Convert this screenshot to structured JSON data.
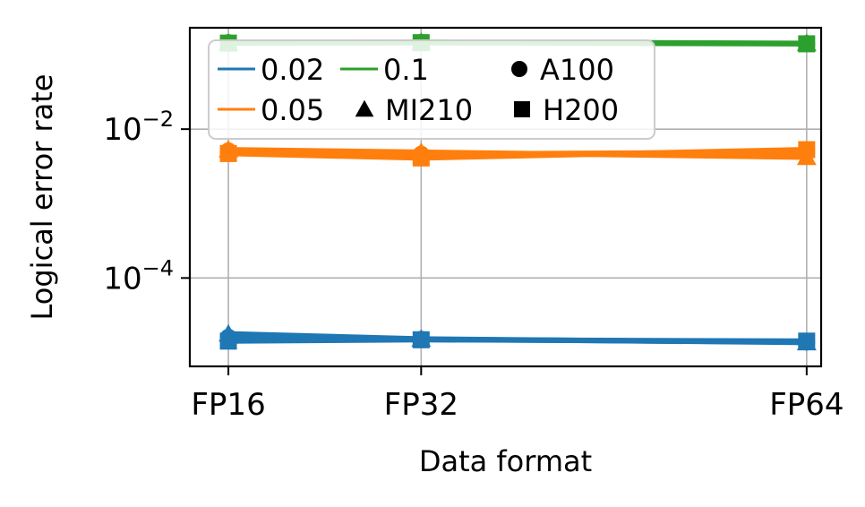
{
  "chart_data": {
    "type": "line",
    "title": "",
    "xlabel": "Data format",
    "ylabel": "Logical error rate",
    "categories": [
      "FP16",
      "FP32",
      "FP64"
    ],
    "x": [
      16,
      32,
      64
    ],
    "x_tick_labels": [
      "FP16",
      "FP32",
      "FP64"
    ],
    "yscale": "log",
    "ylim": [
      6.5e-06,
      0.23
    ],
    "y_ticks": [
      {
        "value": 0.01,
        "base": "10",
        "exp": "−2"
      },
      {
        "value": 0.0001,
        "base": "10",
        "exp": "−4"
      }
    ],
    "grid": true,
    "legend_position": "top-left",
    "legend": {
      "rates": [
        {
          "label": "0.02",
          "color": "#1f77b4"
        },
        {
          "label": "0.05",
          "color": "#ff7f0e"
        },
        {
          "label": "0.1",
          "color": "#2ca02c"
        }
      ],
      "devices": [
        {
          "label": "A100",
          "marker": "circle"
        },
        {
          "label": "MI210",
          "marker": "triangle"
        },
        {
          "label": "H200",
          "marker": "square"
        }
      ]
    },
    "series": [
      {
        "rate": "0.02",
        "device": "A100",
        "color": "#1f77b4",
        "marker": "circle",
        "values": [
          1.6e-05,
          1.5e-05,
          1.38e-05
        ]
      },
      {
        "rate": "0.02",
        "device": "MI210",
        "color": "#1f77b4",
        "marker": "triangle",
        "values": [
          1.78e-05,
          1.52e-05,
          1.36e-05
        ]
      },
      {
        "rate": "0.02",
        "device": "H200",
        "color": "#1f77b4",
        "marker": "square",
        "values": [
          1.42e-05,
          1.48e-05,
          1.42e-05
        ]
      },
      {
        "rate": "0.05",
        "device": "A100",
        "color": "#ff7f0e",
        "marker": "circle",
        "values": [
          0.0051,
          0.0046,
          0.0049
        ]
      },
      {
        "rate": "0.05",
        "device": "MI210",
        "color": "#ff7f0e",
        "marker": "triangle",
        "values": [
          0.0053,
          0.0049,
          0.0042
        ]
      },
      {
        "rate": "0.05",
        "device": "H200",
        "color": "#ff7f0e",
        "marker": "square",
        "values": [
          0.0047,
          0.0041,
          0.0053
        ]
      },
      {
        "rate": "0.1",
        "device": "A100",
        "color": "#2ca02c",
        "marker": "circle",
        "values": [
          0.145,
          0.146,
          0.141
        ]
      },
      {
        "rate": "0.1",
        "device": "MI210",
        "color": "#2ca02c",
        "marker": "triangle",
        "values": [
          0.144,
          0.148,
          0.142
        ]
      },
      {
        "rate": "0.1",
        "device": "H200",
        "color": "#2ca02c",
        "marker": "square",
        "values": [
          0.143,
          0.145,
          0.14
        ]
      }
    ]
  }
}
